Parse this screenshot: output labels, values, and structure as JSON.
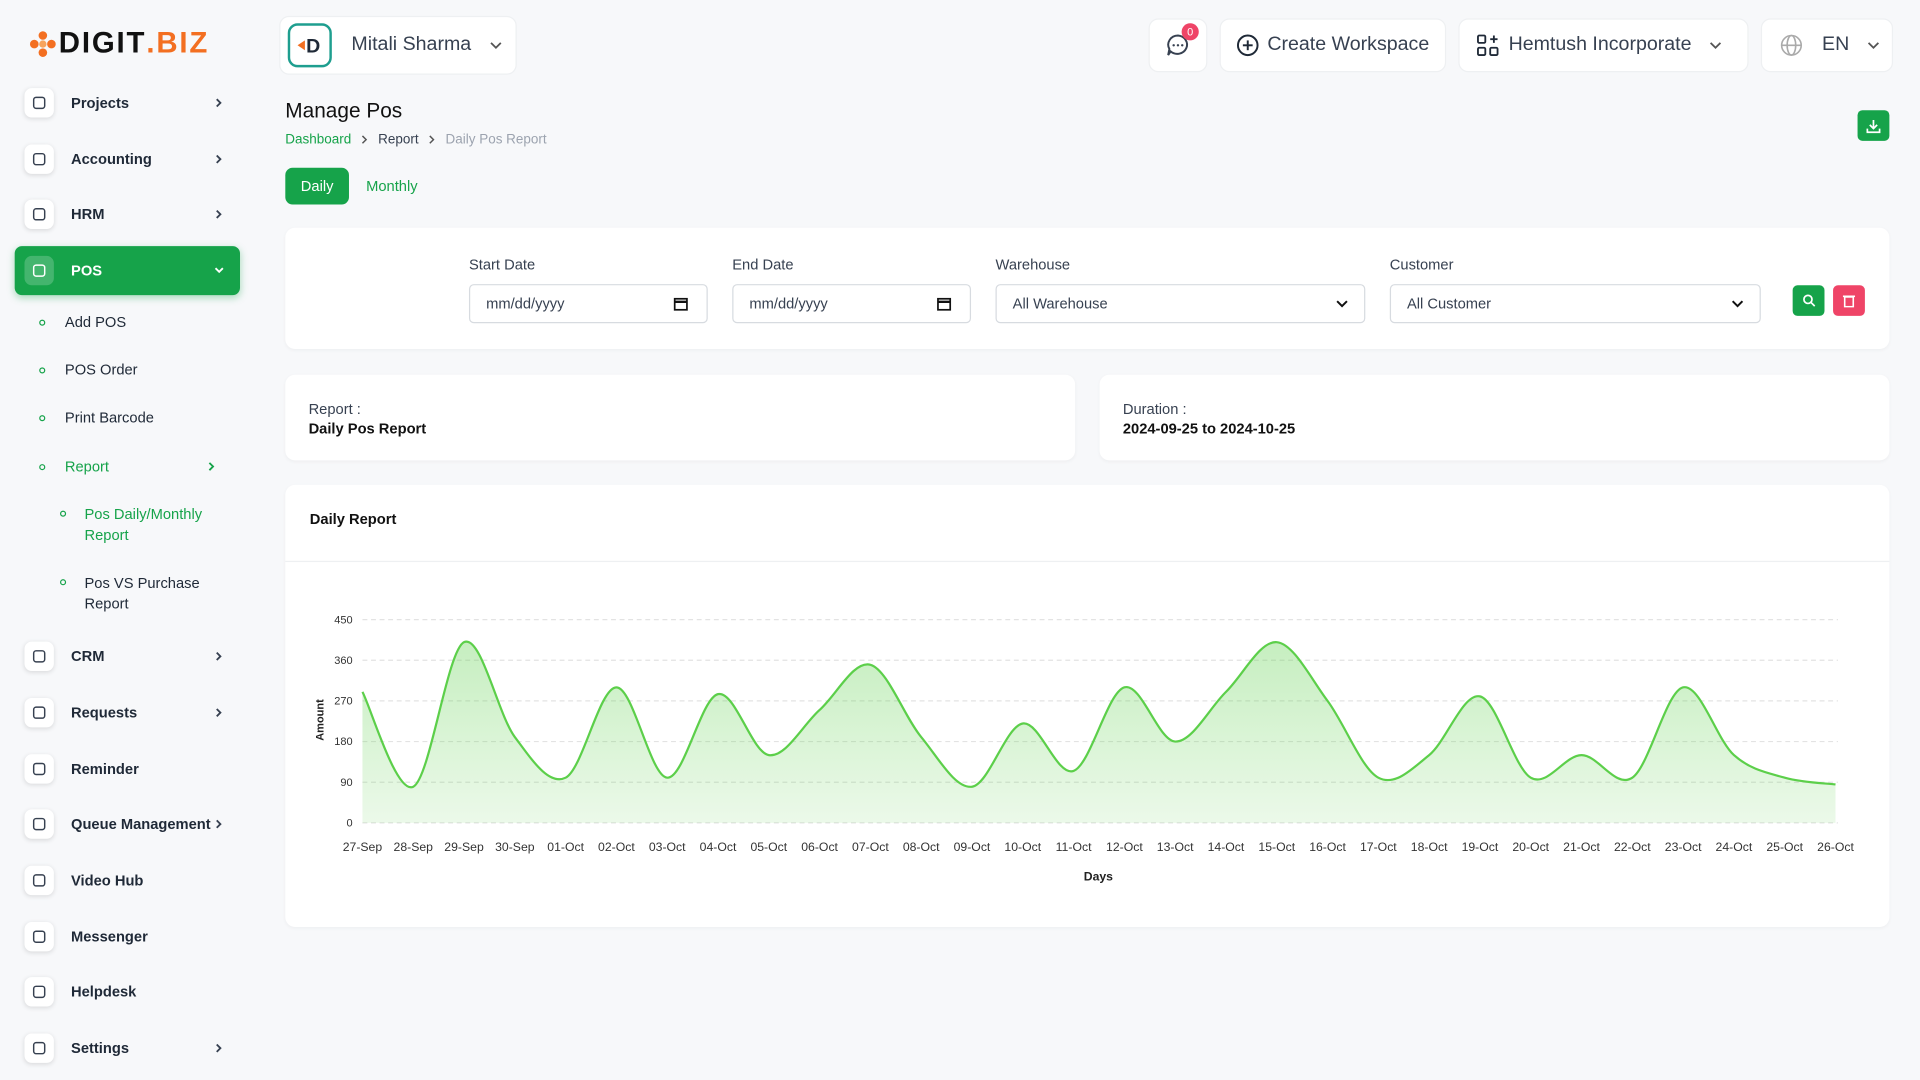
{
  "brand": {
    "name": "DIGIT",
    "suffix": ".BIZ"
  },
  "header": {
    "user": "Mitali Sharma",
    "notifications": 0,
    "create_workspace": "Create Workspace",
    "workspace": "Hemtush Incorporate",
    "language": "EN"
  },
  "sidebar": {
    "menu": [
      "Projects",
      "Accounting",
      "HRM",
      "POS",
      "CRM",
      "Requests",
      "Reminder",
      "Queue Management",
      "Video Hub",
      "Messenger",
      "Helpdesk",
      "Settings"
    ],
    "pos_submenu": [
      "Add POS",
      "POS Order",
      "Print Barcode",
      "Report"
    ],
    "report_submenu": [
      "Pos Daily/Monthly Report",
      "Pos VS Purchase Report"
    ]
  },
  "page": {
    "title": "Manage Pos",
    "breadcrumb": [
      "Dashboard",
      "Report",
      "Daily Pos Report"
    ],
    "tabs": [
      "Daily",
      "Monthly"
    ]
  },
  "filters": {
    "start_date": {
      "label": "Start Date",
      "placeholder": "mm/dd/yyyy"
    },
    "end_date": {
      "label": "End Date",
      "placeholder": "mm/dd/yyyy"
    },
    "warehouse": {
      "label": "Warehouse",
      "value": "All Warehouse"
    },
    "customer": {
      "label": "Customer",
      "value": "All Customer"
    }
  },
  "summary": {
    "report_label": "Report :",
    "report_value": "Daily Pos Report",
    "duration_label": "Duration :",
    "duration_value": "2024-09-25 to 2024-10-25"
  },
  "chart_data": {
    "type": "area",
    "title": "Daily Report",
    "x_label": "Days",
    "y_label": "Amount",
    "categories": [
      "27-Sep",
      "28-Sep",
      "29-Sep",
      "30-Sep",
      "01-Oct",
      "02-Oct",
      "03-Oct",
      "04-Oct",
      "05-Oct",
      "06-Oct",
      "07-Oct",
      "08-Oct",
      "09-Oct",
      "10-Oct",
      "11-Oct",
      "12-Oct",
      "13-Oct",
      "14-Oct",
      "15-Oct",
      "16-Oct",
      "17-Oct",
      "18-Oct",
      "19-Oct",
      "20-Oct",
      "21-Oct",
      "22-Oct",
      "23-Oct",
      "24-Oct",
      "25-Oct",
      "26-Oct"
    ],
    "values": [
      290,
      80,
      400,
      190,
      100,
      300,
      100,
      285,
      150,
      250,
      350,
      190,
      80,
      220,
      115,
      300,
      180,
      290,
      400,
      270,
      100,
      150,
      280,
      100,
      150,
      100,
      300,
      150,
      100,
      85
    ],
    "color": "#5ccf4a",
    "ylim": [
      0,
      450
    ],
    "yticks": [
      0,
      90,
      180,
      270,
      360,
      450
    ],
    "grid": true
  }
}
